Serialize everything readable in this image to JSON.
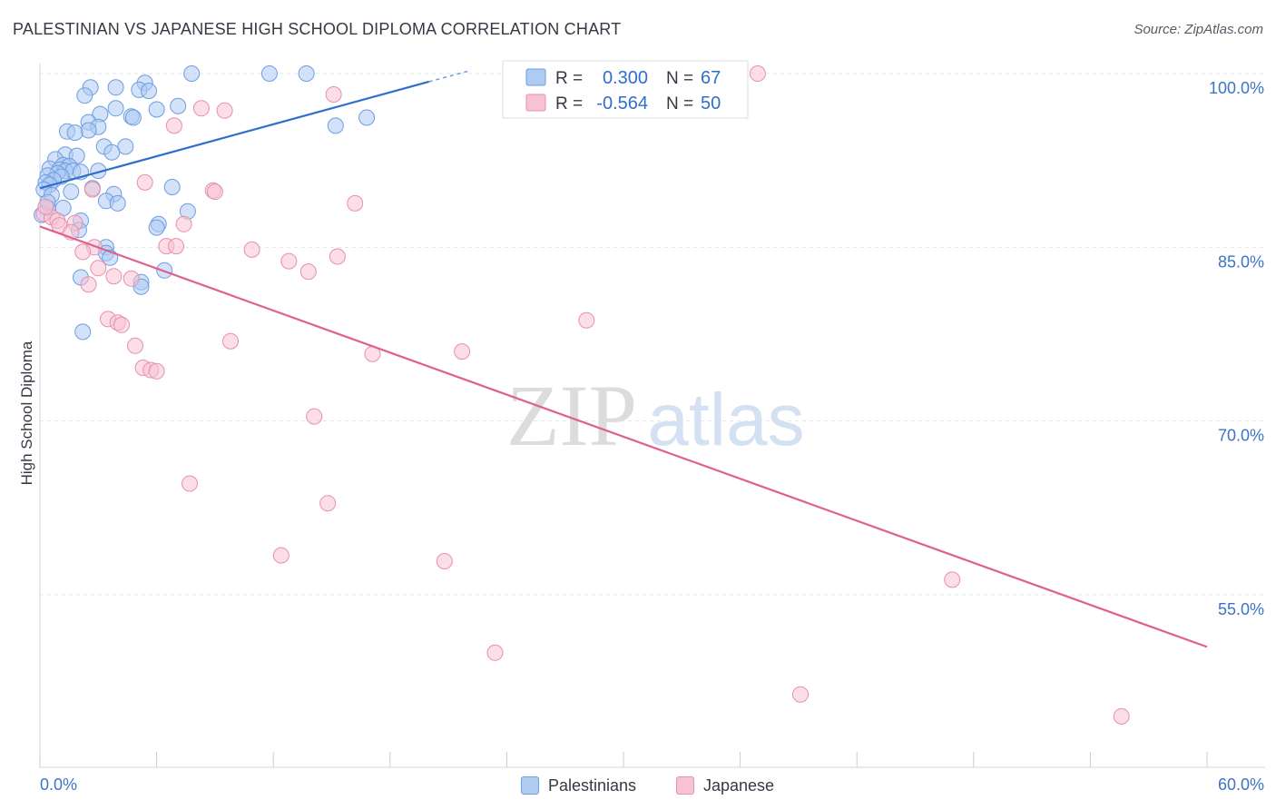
{
  "header": {
    "title": "PALESTINIAN VS JAPANESE HIGH SCHOOL DIPLOMA CORRELATION CHART",
    "source": "Source: ZipAtlas.com"
  },
  "watermark": {
    "part1": "ZIP",
    "part2": "atlas"
  },
  "legend": {
    "r_label": "R =",
    "n_label": "N =",
    "rows": [
      {
        "r": "0.300",
        "n": "67",
        "swatch_fill": "#aecbf2",
        "swatch_stroke": "#6c9ee0",
        "value_color": "#2f6fcc"
      },
      {
        "r": "-0.564",
        "n": "50",
        "swatch_fill": "#f7c3d4",
        "swatch_stroke": "#e88fae",
        "value_color": "#2f6fcc"
      }
    ]
  },
  "bottom_legend": [
    {
      "label": "Palestinians",
      "fill": "#aecbf2",
      "stroke": "#6c9ee0"
    },
    {
      "label": "Japanese",
      "fill": "#f7c3d4",
      "stroke": "#e88fae"
    }
  ],
  "chart_data": {
    "type": "scatter",
    "title": "PALESTINIAN VS JAPANESE HIGH SCHOOL DIPLOMA CORRELATION CHART",
    "xlabel": "",
    "ylabel": "High School Diploma",
    "xlim": [
      0,
      60
    ],
    "ylim": [
      38.5,
      101.3
    ],
    "x_tick_labels": [
      {
        "value": 0,
        "label": "0.0%"
      },
      {
        "value": 60,
        "label": "60.0%"
      }
    ],
    "y_tick_labels": [
      {
        "value": 100,
        "label": "100.0%"
      },
      {
        "value": 85,
        "label": "85.0%"
      },
      {
        "value": 70,
        "label": "70.0%"
      },
      {
        "value": 55,
        "label": "55.0%"
      }
    ],
    "x_minor_ticks": [
      0,
      6,
      12,
      18,
      24,
      30,
      36,
      42,
      48,
      54,
      60
    ],
    "grid": true,
    "series": [
      {
        "name": "Palestinians",
        "color": "#6c9ee0",
        "fill": "#aecbf2",
        "trend": {
          "x": [
            0,
            20
          ],
          "y": [
            90.1,
            99.3
          ],
          "dashed_to": {
            "x": 22,
            "y": 100.2
          },
          "color": "#2f6fcc"
        },
        "points": [
          [
            7.8,
            100
          ],
          [
            11.8,
            100
          ],
          [
            13.7,
            100
          ],
          [
            5.4,
            99.2
          ],
          [
            2.6,
            98.8
          ],
          [
            3.9,
            98.8
          ],
          [
            5.1,
            98.6
          ],
          [
            5.6,
            98.5
          ],
          [
            2.3,
            98.1
          ],
          [
            7.1,
            97.2
          ],
          [
            3.9,
            97.0
          ],
          [
            6.0,
            96.9
          ],
          [
            3.1,
            96.5
          ],
          [
            4.7,
            96.3
          ],
          [
            4.8,
            96.2
          ],
          [
            16.8,
            96.2
          ],
          [
            2.5,
            95.8
          ],
          [
            3.0,
            95.4
          ],
          [
            15.2,
            95.5
          ],
          [
            2.5,
            95.1
          ],
          [
            1.4,
            95.0
          ],
          [
            1.8,
            94.9
          ],
          [
            3.3,
            93.7
          ],
          [
            4.4,
            93.7
          ],
          [
            3.7,
            93.2
          ],
          [
            1.3,
            93.0
          ],
          [
            1.9,
            92.9
          ],
          [
            0.8,
            92.6
          ],
          [
            1.2,
            92.1
          ],
          [
            1.5,
            92.0
          ],
          [
            0.5,
            91.8
          ],
          [
            1.0,
            91.7
          ],
          [
            1.3,
            91.6
          ],
          [
            1.7,
            91.6
          ],
          [
            3.0,
            91.6
          ],
          [
            2.1,
            91.5
          ],
          [
            0.9,
            91.4
          ],
          [
            0.4,
            91.2
          ],
          [
            1.1,
            91.1
          ],
          [
            0.7,
            90.8
          ],
          [
            0.3,
            90.6
          ],
          [
            0.5,
            90.4
          ],
          [
            6.8,
            90.2
          ],
          [
            2.7,
            90.1
          ],
          [
            0.2,
            90.0
          ],
          [
            1.6,
            89.8
          ],
          [
            3.8,
            89.6
          ],
          [
            0.6,
            89.5
          ],
          [
            3.4,
            89.0
          ],
          [
            4.0,
            88.8
          ],
          [
            0.4,
            88.4
          ],
          [
            1.2,
            88.4
          ],
          [
            7.6,
            88.1
          ],
          [
            0.1,
            87.8
          ],
          [
            2.1,
            87.3
          ],
          [
            6.1,
            87.0
          ],
          [
            6.0,
            86.7
          ],
          [
            2.0,
            86.5
          ],
          [
            3.4,
            85.0
          ],
          [
            3.4,
            84.5
          ],
          [
            3.6,
            84.1
          ],
          [
            6.4,
            83.0
          ],
          [
            2.1,
            82.4
          ],
          [
            5.2,
            82.0
          ],
          [
            5.2,
            81.6
          ],
          [
            2.2,
            77.7
          ],
          [
            0.4,
            88.9
          ]
        ]
      },
      {
        "name": "Japanese",
        "color": "#e88fae",
        "fill": "#f7c3d4",
        "trend": {
          "x": [
            0,
            60
          ],
          "y": [
            86.8,
            50.5
          ],
          "color": "#e0608c"
        },
        "points": [
          [
            36.9,
            100
          ],
          [
            15.1,
            98.2
          ],
          [
            8.3,
            97.0
          ],
          [
            9.5,
            96.8
          ],
          [
            6.9,
            95.5
          ],
          [
            5.4,
            90.6
          ],
          [
            2.7,
            90.0
          ],
          [
            8.9,
            89.9
          ],
          [
            9.0,
            89.8
          ],
          [
            16.2,
            88.8
          ],
          [
            0.2,
            87.9
          ],
          [
            0.6,
            87.6
          ],
          [
            0.9,
            87.3
          ],
          [
            1.8,
            87.1
          ],
          [
            1.0,
            86.9
          ],
          [
            7.4,
            87.0
          ],
          [
            1.6,
            86.3
          ],
          [
            0.3,
            88.5
          ],
          [
            2.8,
            85.0
          ],
          [
            6.5,
            85.1
          ],
          [
            7.0,
            85.1
          ],
          [
            10.9,
            84.8
          ],
          [
            2.2,
            84.6
          ],
          [
            15.3,
            84.2
          ],
          [
            12.8,
            83.8
          ],
          [
            3.0,
            83.2
          ],
          [
            13.8,
            82.9
          ],
          [
            3.8,
            82.5
          ],
          [
            4.7,
            82.3
          ],
          [
            2.5,
            81.8
          ],
          [
            28.1,
            78.7
          ],
          [
            3.5,
            78.8
          ],
          [
            4.0,
            78.5
          ],
          [
            4.2,
            78.3
          ],
          [
            9.8,
            76.9
          ],
          [
            4.9,
            76.5
          ],
          [
            21.7,
            76.0
          ],
          [
            17.1,
            75.8
          ],
          [
            5.3,
            74.6
          ],
          [
            5.7,
            74.4
          ],
          [
            6.0,
            74.3
          ],
          [
            14.1,
            70.4
          ],
          [
            7.7,
            64.6
          ],
          [
            14.8,
            62.9
          ],
          [
            12.4,
            58.4
          ],
          [
            20.8,
            57.9
          ],
          [
            46.9,
            56.3
          ],
          [
            23.4,
            50.0
          ],
          [
            39.1,
            46.4
          ],
          [
            55.6,
            44.5
          ]
        ]
      }
    ]
  }
}
